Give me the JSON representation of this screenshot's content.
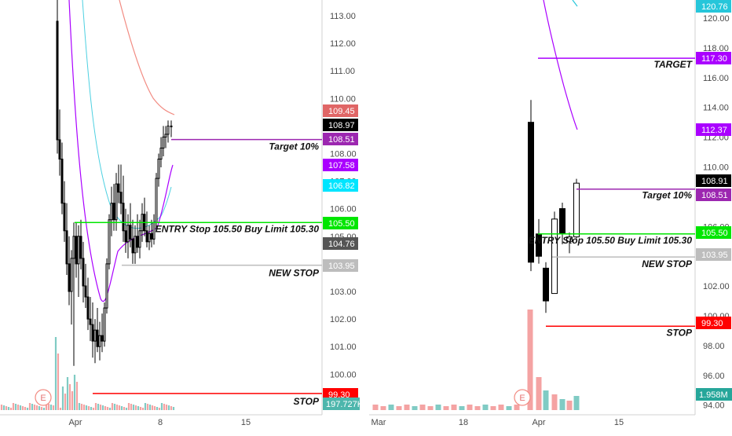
{
  "chart_data": [
    {
      "type": "candlestick",
      "panel": "left",
      "price_axis": {
        "ticks": [
          "113.00",
          "112.00",
          "111.00",
          "110.00",
          "109.00",
          "108.00",
          "107.00",
          "106.00",
          "105.00",
          "104.00",
          "103.00",
          "102.00",
          "101.00",
          "100.00"
        ],
        "ylim": [
          99.0,
          113.6
        ]
      },
      "x_axis": {
        "ticks": [
          "Apr",
          "8",
          "15"
        ]
      },
      "price_tags": [
        {
          "text": "109.45",
          "value": 109.45,
          "color": "#e06666"
        },
        {
          "text": "108.97",
          "value": 108.97,
          "color": "#000000"
        },
        {
          "text": "108.51",
          "value": 108.51,
          "color": "#9c27b0"
        },
        {
          "text": "107.58",
          "value": 107.58,
          "color": "#aa00ff"
        },
        {
          "text": "106.82",
          "value": 106.82,
          "color": "#00e5ff"
        },
        {
          "text": "105.50",
          "value": 105.5,
          "color": "#00e600"
        },
        {
          "text": "104.76",
          "value": 104.76,
          "color": "#555555"
        },
        {
          "text": "103.95",
          "value": 103.95,
          "color": "#bdbdbd"
        },
        {
          "text": "99.30",
          "value": 99.3,
          "color": "#ff0000"
        }
      ],
      "volume_tag": {
        "text": "197.727K",
        "color": "#4db6ac"
      },
      "levels": [
        {
          "label": "Target 10%",
          "value": 108.51,
          "color": "#9c27b0"
        },
        {
          "label": "ENTRY Stop 105.50 Buy Limit 105.30",
          "value": 105.5,
          "color": "#00e600"
        },
        {
          "label": "NEW STOP",
          "value": 103.95,
          "color": "#bdbdbd"
        },
        {
          "label": "STOP",
          "value": 99.3,
          "color": "#ff0000"
        }
      ],
      "earnings_marker": "E"
    },
    {
      "type": "candlestick",
      "panel": "right",
      "price_axis": {
        "ticks": [
          "120.00",
          "118.00",
          "116.00",
          "114.00",
          "112.00",
          "110.00",
          "108.00",
          "106.00",
          "104.00",
          "102.00",
          "100.00",
          "98.00",
          "96.00",
          "94.00"
        ],
        "ylim": [
          93.6,
          121.3
        ]
      },
      "x_axis": {
        "ticks": [
          "Mar",
          "18",
          "Apr",
          "15"
        ]
      },
      "price_tags": [
        {
          "text": "120.76",
          "value": 120.76,
          "color": "#26c6da"
        },
        {
          "text": "117.30",
          "value": 117.3,
          "color": "#aa00ff"
        },
        {
          "text": "112.37",
          "value": 112.37,
          "color": "#aa00ff"
        },
        {
          "text": "108.91",
          "value": 108.91,
          "color": "#000000"
        },
        {
          "text": "108.51",
          "value": 108.51,
          "color": "#9c27b0"
        },
        {
          "text": "105.50",
          "value": 105.5,
          "color": "#00e600"
        },
        {
          "text": "103.95",
          "value": 103.95,
          "color": "#bdbdbd"
        },
        {
          "text": "99.30",
          "value": 99.3,
          "color": "#ff0000"
        }
      ],
      "volume_tag": {
        "text": "1.958M",
        "color": "#26a69a"
      },
      "levels": [
        {
          "label": "TARGET",
          "value": 117.3,
          "color": "#aa00ff"
        },
        {
          "label": "Target 10%",
          "value": 108.51,
          "color": "#9c27b0"
        },
        {
          "label": "ENTRY Stop 105.50 Buy Limit 105.30",
          "value": 105.5,
          "color": "#00e600"
        },
        {
          "label": "NEW STOP",
          "value": 103.95,
          "color": "#bdbdbd"
        },
        {
          "label": "STOP",
          "value": 99.3,
          "color": "#ff0000"
        }
      ],
      "earnings_marker": "E"
    }
  ]
}
